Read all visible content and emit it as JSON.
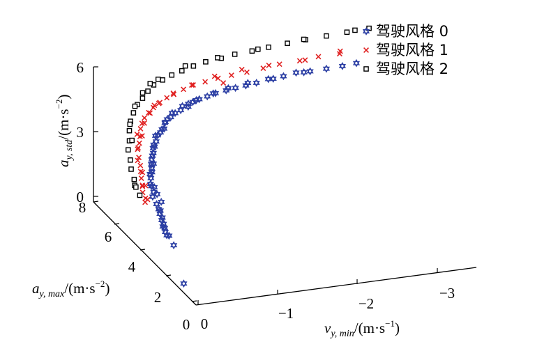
{
  "chart_data": {
    "type": "scatter",
    "dimensions": 3,
    "axes": {
      "x": {
        "label": {
          "var": "v",
          "sub": "y, min",
          "rest_a": "/(m·s",
          "sup": "−1",
          "rest_b": ")"
        },
        "ticks": [
          0,
          -1,
          -2,
          -3
        ],
        "tick_labels": [
          "0",
          "−1",
          "−2",
          "−3"
        ],
        "range": [
          0,
          -3.5
        ]
      },
      "y": {
        "label": {
          "var": "a",
          "sub": "y, max",
          "rest_a": "/(m·s",
          "sup": "−2",
          "rest_b": ")"
        },
        "ticks": [
          0,
          2,
          4,
          6,
          8
        ],
        "tick_labels": [
          "0",
          "2",
          "4",
          "6",
          "8"
        ],
        "range": [
          0,
          8
        ]
      },
      "z": {
        "label": {
          "var": "a",
          "sub": "y, std",
          "rest_a": "/(m·s",
          "sup": "−2",
          "rest_b": ")"
        },
        "ticks": [
          0,
          3,
          6
        ],
        "tick_labels": [
          "0",
          "3",
          "6"
        ],
        "range": [
          0,
          6
        ]
      }
    },
    "legend": {
      "placement": "top-right"
    },
    "grid": false,
    "series": [
      {
        "name": "驾驶风格 0",
        "marker": "hexagram",
        "color": "#2b3ea3",
        "points": [
          [
            -0.06,
            1.33,
            0.17
          ],
          [
            -0.28,
            4.01,
            0.7
          ],
          [
            -0.29,
            4.19,
            0.74
          ],
          [
            -0.3,
            4.3,
            0.85
          ],
          [
            -0.31,
            4.46,
            0.94
          ],
          [
            -0.31,
            4.59,
            1.04
          ],
          [
            -0.32,
            4.8,
            1.2
          ],
          [
            -0.32,
            4.89,
            1.36
          ],
          [
            -0.32,
            5.06,
            1.5
          ],
          [
            -0.31,
            5.3,
            1.7
          ],
          [
            -0.32,
            5.29,
            1.92
          ],
          [
            -0.32,
            5.46,
            2.09
          ],
          [
            -0.34,
            5.63,
            2.35
          ],
          [
            -0.34,
            5.69,
            2.5
          ],
          [
            -0.36,
            5.68,
            2.76
          ],
          [
            -0.37,
            5.77,
            2.89
          ],
          [
            -0.38,
            5.81,
            3.08
          ],
          [
            -0.41,
            5.87,
            3.33
          ],
          [
            -0.42,
            5.95,
            3.5
          ],
          [
            -0.43,
            5.97,
            3.65
          ],
          [
            -0.46,
            5.96,
            3.79
          ],
          [
            -0.49,
            6.03,
            4.02
          ],
          [
            -0.52,
            5.99,
            4.16
          ],
          [
            -0.57,
            6.03,
            4.29
          ],
          [
            -0.6,
            6.15,
            4.47
          ],
          [
            -0.64,
            6.22,
            4.57
          ],
          [
            -0.68,
            6.19,
            4.67
          ],
          [
            -0.74,
            6.22,
            4.81
          ],
          [
            -0.81,
            6.22,
            4.91
          ],
          [
            -0.91,
            6.26,
            5.0
          ],
          [
            -0.98,
            6.34,
            5.13
          ],
          [
            -1.07,
            6.39,
            5.19
          ],
          [
            -1.17,
            6.39,
            5.27
          ],
          [
            -1.28,
            6.43,
            5.34
          ],
          [
            -1.41,
            6.41,
            5.42
          ],
          [
            -1.53,
            6.43,
            5.46
          ],
          [
            -1.66,
            6.43,
            5.51
          ],
          [
            -1.79,
            6.41,
            5.58
          ],
          [
            -1.95,
            6.48,
            5.63
          ],
          [
            -2.14,
            6.48,
            5.67
          ],
          [
            -2.3,
            6.49,
            5.75
          ],
          [
            -2.47,
            6.45,
            5.75
          ],
          [
            -2.67,
            6.43,
            5.78
          ],
          [
            -2.87,
            6.42,
            5.81
          ],
          [
            -3.05,
            6.45,
            5.84
          ],
          [
            -0.26,
            3.35,
            0.64
          ],
          [
            -0.28,
            3.84,
            0.78
          ],
          [
            -0.26,
            4.2,
            1.0
          ],
          [
            -0.3,
            4.49,
            1.22
          ],
          [
            -0.31,
            4.7,
            1.42
          ],
          [
            -0.35,
            4.88,
            1.69
          ],
          [
            -0.33,
            5.08,
            1.94
          ],
          [
            -0.34,
            5.36,
            2.09
          ],
          [
            -0.33,
            5.59,
            2.11
          ],
          [
            -0.35,
            5.61,
            2.63
          ],
          [
            -0.37,
            5.61,
            3.02
          ],
          [
            -0.39,
            5.82,
            3.25
          ],
          [
            -0.43,
            5.9,
            3.6
          ],
          [
            -0.47,
            6.08,
            3.98
          ],
          [
            -0.55,
            6.07,
            4.24
          ],
          [
            -0.62,
            6.24,
            4.45
          ],
          [
            -0.72,
            6.33,
            4.76
          ],
          [
            -0.86,
            6.4,
            4.97
          ],
          [
            -1.04,
            6.44,
            5.13
          ],
          [
            -1.24,
            6.36,
            5.39
          ],
          [
            -1.45,
            6.49,
            5.45
          ],
          [
            -1.7,
            6.52,
            5.55
          ],
          [
            -2.02,
            6.53,
            5.58
          ],
          [
            -2.38,
            6.38,
            5.79
          ],
          [
            -0.96,
            6.56,
            4.93
          ]
        ]
      },
      {
        "name": "驾驶风格 1",
        "marker": "x",
        "color": "#e02020",
        "points": [
          [
            -0.17,
            5.02,
            1.68
          ],
          [
            -0.18,
            5.05,
            1.84
          ],
          [
            -0.17,
            5.21,
            2.02
          ],
          [
            -0.19,
            5.35,
            2.21
          ],
          [
            -0.2,
            5.5,
            2.49
          ],
          [
            -0.21,
            5.61,
            2.73
          ],
          [
            -0.22,
            5.7,
            2.95
          ],
          [
            -0.23,
            5.88,
            3.21
          ],
          [
            -0.24,
            6.04,
            3.49
          ],
          [
            -0.27,
            6.09,
            3.73
          ],
          [
            -0.29,
            6.16,
            3.99
          ],
          [
            -0.32,
            6.31,
            4.24
          ],
          [
            -0.35,
            6.38,
            4.43
          ],
          [
            -0.39,
            6.44,
            4.63
          ],
          [
            -0.45,
            6.48,
            4.82
          ],
          [
            -0.52,
            6.55,
            4.98
          ],
          [
            -0.59,
            6.56,
            5.13
          ],
          [
            -0.7,
            6.62,
            5.3
          ],
          [
            -0.79,
            6.64,
            5.4
          ],
          [
            -0.92,
            6.69,
            5.54
          ],
          [
            -1.05,
            6.74,
            5.65
          ],
          [
            -1.2,
            6.74,
            5.72
          ],
          [
            -1.36,
            6.73,
            5.81
          ],
          [
            -1.53,
            6.74,
            5.86
          ],
          [
            -1.72,
            6.72,
            5.92
          ],
          [
            -1.93,
            6.75,
            5.98
          ],
          [
            -2.14,
            6.79,
            6.04
          ],
          [
            -2.39,
            6.76,
            6.09
          ],
          [
            -2.63,
            6.8,
            6.14
          ],
          [
            -2.89,
            6.76,
            6.17
          ],
          [
            -0.18,
            4.89,
            1.88
          ],
          [
            -0.18,
            5.29,
            2.3
          ],
          [
            -0.21,
            5.48,
            2.77
          ],
          [
            -0.22,
            5.91,
            3.06
          ],
          [
            -0.25,
            6.06,
            3.54
          ],
          [
            -0.3,
            6.06,
            4.07
          ],
          [
            -0.36,
            6.26,
            4.51
          ],
          [
            -0.46,
            6.44,
            4.82
          ],
          [
            -0.62,
            6.67,
            5.09
          ],
          [
            -0.8,
            6.74,
            5.39
          ],
          [
            -1.05,
            6.85,
            5.58
          ],
          [
            -1.33,
            6.81,
            5.87
          ],
          [
            -1.66,
            6.74,
            6.06
          ],
          [
            -2.02,
            6.87,
            6.0
          ],
          [
            -2.45,
            6.72,
            6.12
          ],
          [
            -2.91,
            6.84,
            6.23
          ],
          [
            -0.29,
            6.39,
            3.95
          ],
          [
            -0.51,
            6.41,
            5.17
          ],
          [
            -1.41,
            6.63,
            5.63
          ],
          [
            -0.2,
            5.18,
            2.34
          ]
        ]
      },
      {
        "name": "驾驶风格 2",
        "marker": "square",
        "color": "#000000",
        "points": [
          [
            -0.1,
            5.0,
            2.05
          ],
          [
            -0.12,
            5.52,
            2.19
          ],
          [
            -0.11,
            5.5,
            2.48
          ],
          [
            -0.13,
            5.86,
            2.73
          ],
          [
            -0.15,
            6.05,
            3.03
          ],
          [
            -0.17,
            6.34,
            3.32
          ],
          [
            -0.2,
            6.43,
            3.67
          ],
          [
            -0.23,
            6.62,
            4.01
          ],
          [
            -0.27,
            6.78,
            4.33
          ],
          [
            -0.32,
            6.86,
            4.65
          ],
          [
            -0.38,
            6.93,
            4.96
          ],
          [
            -0.45,
            6.96,
            5.2
          ],
          [
            -0.54,
            7.1,
            5.4
          ],
          [
            -0.63,
            7.21,
            5.58
          ],
          [
            -0.74,
            7.2,
            5.76
          ],
          [
            -0.86,
            7.23,
            5.91
          ],
          [
            -0.99,
            7.25,
            6.03
          ],
          [
            -1.14,
            7.28,
            6.16
          ],
          [
            -1.3,
            7.32,
            6.25
          ],
          [
            -1.49,
            7.29,
            6.34
          ],
          [
            -1.67,
            7.35,
            6.4
          ],
          [
            -1.88,
            7.31,
            6.47
          ],
          [
            -2.09,
            7.33,
            6.53
          ],
          [
            -2.33,
            7.35,
            6.58
          ],
          [
            -2.56,
            7.37,
            6.62
          ],
          [
            -2.82,
            7.36,
            6.67
          ],
          [
            -3.08,
            7.37,
            6.71
          ],
          [
            -3.36,
            7.39,
            6.74
          ],
          [
            -0.09,
            5.24,
            2.29
          ],
          [
            -0.19,
            6.17,
            3.85
          ],
          [
            -0.34,
            6.87,
            4.94
          ],
          [
            -0.49,
            7.2,
            5.29
          ],
          [
            -0.71,
            7.36,
            5.71
          ],
          [
            -1.06,
            7.42,
            6.12
          ],
          [
            -1.46,
            7.39,
            6.32
          ],
          [
            -1.97,
            7.41,
            6.45
          ],
          [
            -2.55,
            7.44,
            6.6
          ],
          [
            -3.2,
            7.49,
            6.67
          ],
          [
            -0.25,
            6.7,
            4.25
          ],
          [
            -0.6,
            7.3,
            5.6
          ]
        ]
      }
    ]
  }
}
